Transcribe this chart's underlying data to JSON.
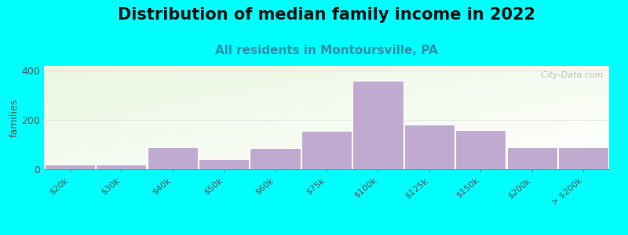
{
  "title": "Distribution of median family income in 2022",
  "subtitle": "All residents in Montoursville, PA",
  "ylabel": "families",
  "categories": [
    "$20k",
    "$30k",
    "$40k",
    "$50k",
    "$60k",
    "$75k",
    "$100k",
    "$125k",
    "$150k",
    "$200k",
    "> $200k"
  ],
  "values": [
    20,
    18,
    90,
    42,
    85,
    155,
    360,
    180,
    158,
    90,
    90
  ],
  "bar_color": "#c0aad0",
  "bar_edgecolor": "#c0aad0",
  "background_color": "#00ffff",
  "ylim": [
    0,
    420
  ],
  "yticks": [
    0,
    200,
    400
  ],
  "title_fontsize": 15,
  "subtitle_fontsize": 11,
  "subtitle_color": "#3090a8",
  "watermark": "  City-Data.com"
}
